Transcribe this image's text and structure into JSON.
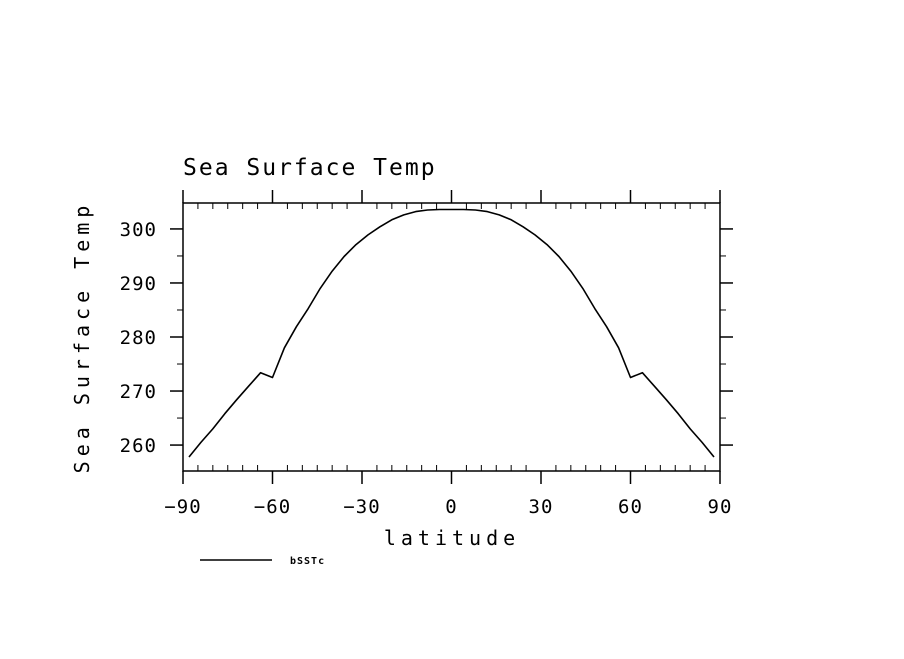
{
  "chart_data": {
    "type": "line",
    "title": "Sea Surface Temp",
    "xlabel": "latitude",
    "ylabel": "Sea Surface Temp",
    "xlim": [
      -90,
      90
    ],
    "ylim": [
      255.2,
      304.8
    ],
    "x_ticks": [
      -90,
      -60,
      -30,
      0,
      30,
      60,
      90
    ],
    "x_tick_labels": [
      "−90",
      "−60",
      "−30",
      "0",
      "30",
      "60",
      "90"
    ],
    "y_ticks": [
      260,
      270,
      280,
      290,
      300
    ],
    "y_tick_labels": [
      "260",
      "270",
      "280",
      "290",
      "300"
    ],
    "grid": false,
    "legend_position": "bottom-left",
    "series": [
      {
        "name": "bSSTc",
        "color": "#000000",
        "x": [
          -88,
          -84,
          -80,
          -76,
          -72,
          -68,
          -64,
          -60,
          -56,
          -52,
          -48,
          -44,
          -40,
          -36,
          -32,
          -28,
          -24,
          -20,
          -16,
          -12,
          -8,
          -4,
          0,
          4,
          8,
          12,
          16,
          20,
          24,
          28,
          32,
          36,
          40,
          44,
          48,
          52,
          56,
          60,
          64,
          68,
          72,
          76,
          80,
          84,
          88
        ],
        "y": [
          257.8,
          260.5,
          263.0,
          265.8,
          268.4,
          270.9,
          273.4,
          272.5,
          278.0,
          281.9,
          285.3,
          289.0,
          292.2,
          294.9,
          297.1,
          298.9,
          300.4,
          301.7,
          302.6,
          303.2,
          303.5,
          303.6,
          303.6,
          303.6,
          303.5,
          303.2,
          302.6,
          301.7,
          300.4,
          298.9,
          297.1,
          294.9,
          292.2,
          289.0,
          285.3,
          281.9,
          278.0,
          272.5,
          273.4,
          270.9,
          268.4,
          265.8,
          263.0,
          260.5,
          257.8
        ]
      }
    ]
  }
}
